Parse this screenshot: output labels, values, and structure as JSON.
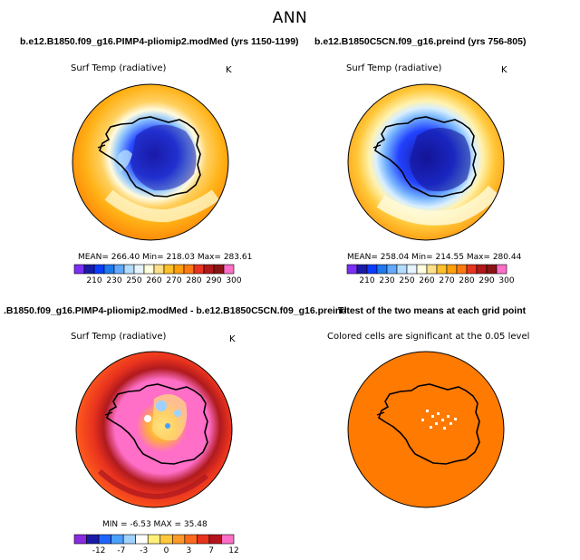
{
  "title": "ANN",
  "panels": {
    "p1": {
      "title": "b.e12.B1850.f09_g16.PIMP4-pliomip2.modMed (yrs 1150-1199)",
      "variable": "Surf Temp (radiative)",
      "units": "K",
      "stats": "MEAN= 266.40   Min= 218.03   Max= 283.61"
    },
    "p2": {
      "title": "b.e12.B1850C5CN.f09_g16.preind (yrs 756-805)",
      "variable": "Surf Temp (radiative)",
      "units": "K",
      "stats": "MEAN= 258.04   Min= 214.55   Max= 280.44"
    },
    "p3": {
      "title": ".B1850.f09_g16.PIMP4-pliomip2.modMed - b.e12.B1850C5CN.f09_g16.preind",
      "variable": "Surf Temp (radiative)",
      "units": "K",
      "stats": "MIN =   -6.53  MAX =   35.48"
    },
    "p4": {
      "title": "T-test of the two means at each grid point",
      "subtitle": "Colored cells are significant at the 0.05 level"
    }
  },
  "colorbars": {
    "absolute": {
      "colors": [
        "#7b2ff7",
        "#1a1aa8",
        "#0a3cff",
        "#1e78f0",
        "#62a8ff",
        "#b4dcff",
        "#e6f4ff",
        "#ffffdd",
        "#ffe08a",
        "#ffc028",
        "#ffa00a",
        "#ff7a10",
        "#e83420",
        "#b21818",
        "#8a1414",
        "#ff6ec7"
      ],
      "ticks": [
        "210",
        "230",
        "250",
        "260",
        "270",
        "280",
        "290",
        "300"
      ]
    },
    "difference": {
      "colors": [
        "#8a2be2",
        "#1a1aa8",
        "#1e64ff",
        "#4aa0ff",
        "#a0d2ff",
        "#ffffff",
        "#fff07a",
        "#ffc83c",
        "#ff9a28",
        "#ff6a1e",
        "#e8321e",
        "#b4141e",
        "#ff6ec7"
      ],
      "ticks": [
        "-12",
        "-7",
        "-3",
        "0",
        "3",
        "7",
        "12"
      ]
    }
  }
}
